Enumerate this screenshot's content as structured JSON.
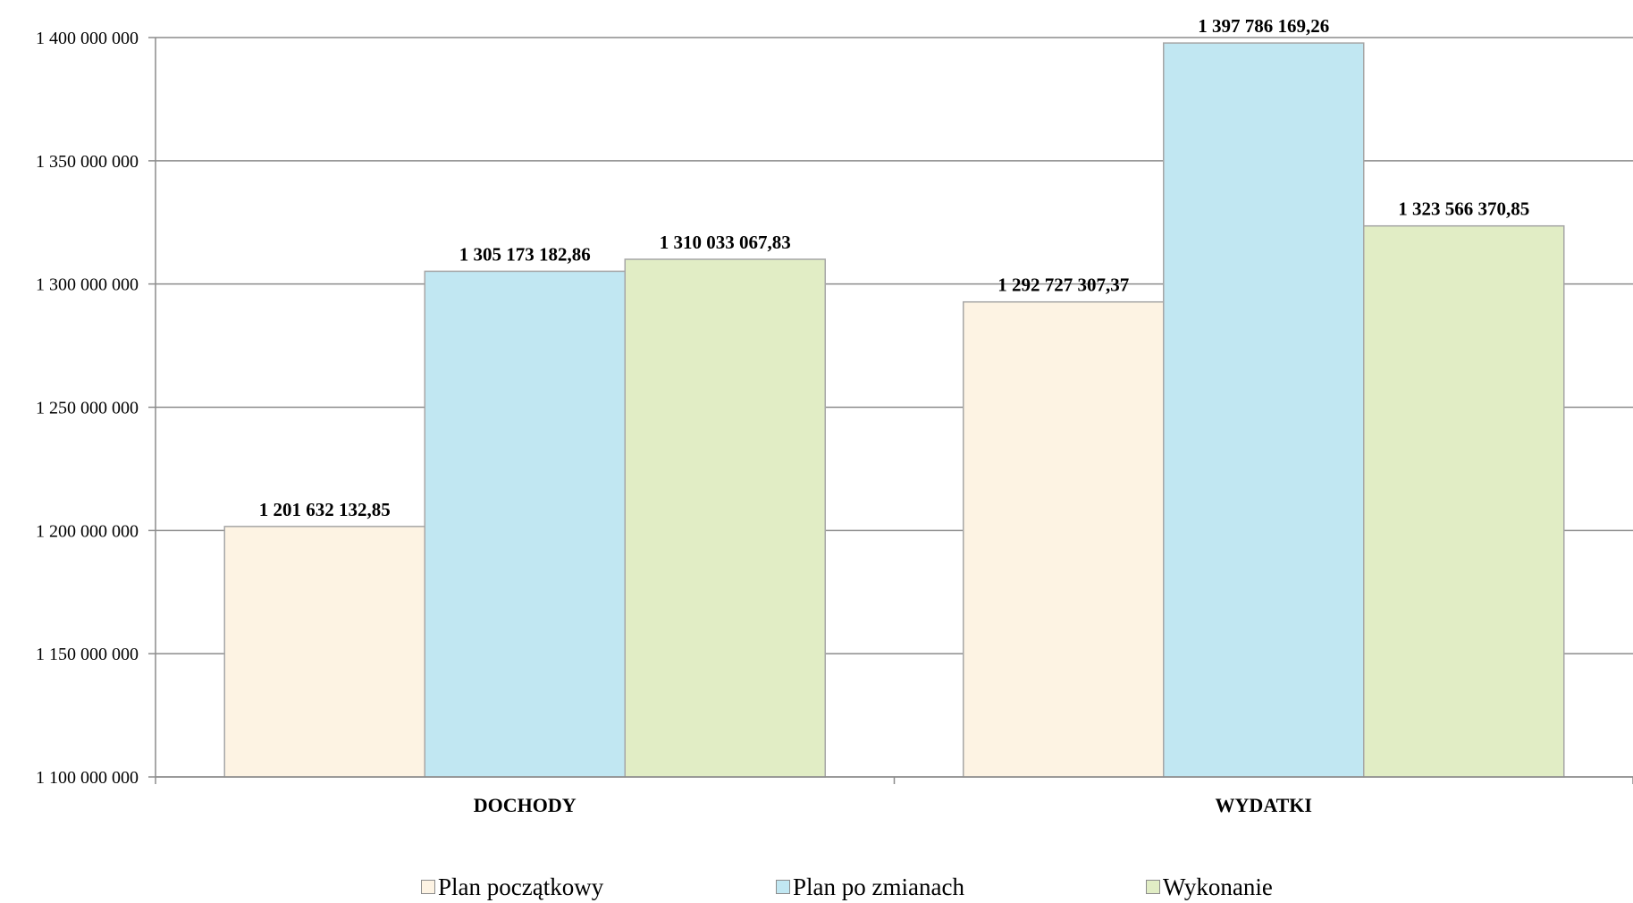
{
  "chart_data": {
    "type": "bar",
    "categories": [
      "DOCHODY",
      "WYDATKI"
    ],
    "series": [
      {
        "name": "Plan początkowy",
        "values": [
          1201632132.85,
          1292727307.37
        ],
        "labels": [
          "1 201 632 132,85",
          "1 292 727 307,37"
        ],
        "color": "#fdf3e3"
      },
      {
        "name": "Plan po zmianach",
        "values": [
          1305173182.86,
          1397786169.26
        ],
        "labels": [
          "1 305 173 182,86",
          "1 397 786 169,26"
        ],
        "color": "#c1e7f2"
      },
      {
        "name": "Wykonanie",
        "values": [
          1310033067.83,
          1323566370.85
        ],
        "labels": [
          "1 310 033 067,83",
          "1 323 566 370,85"
        ],
        "color": "#e1edc5"
      }
    ],
    "ylim": [
      1100000000,
      1400000000
    ],
    "yticks": [
      1100000000,
      1150000000,
      1200000000,
      1250000000,
      1300000000,
      1350000000,
      1400000000
    ],
    "ytick_labels": [
      "1 100 000 000",
      "1 150 000 000",
      "1 200 000 000",
      "1 250 000 000",
      "1 300 000 000",
      "1 350 000 000",
      "1 400 000 000"
    ],
    "grid": true,
    "legend_position": "bottom",
    "title": "",
    "xlabel": "",
    "ylabel": ""
  }
}
